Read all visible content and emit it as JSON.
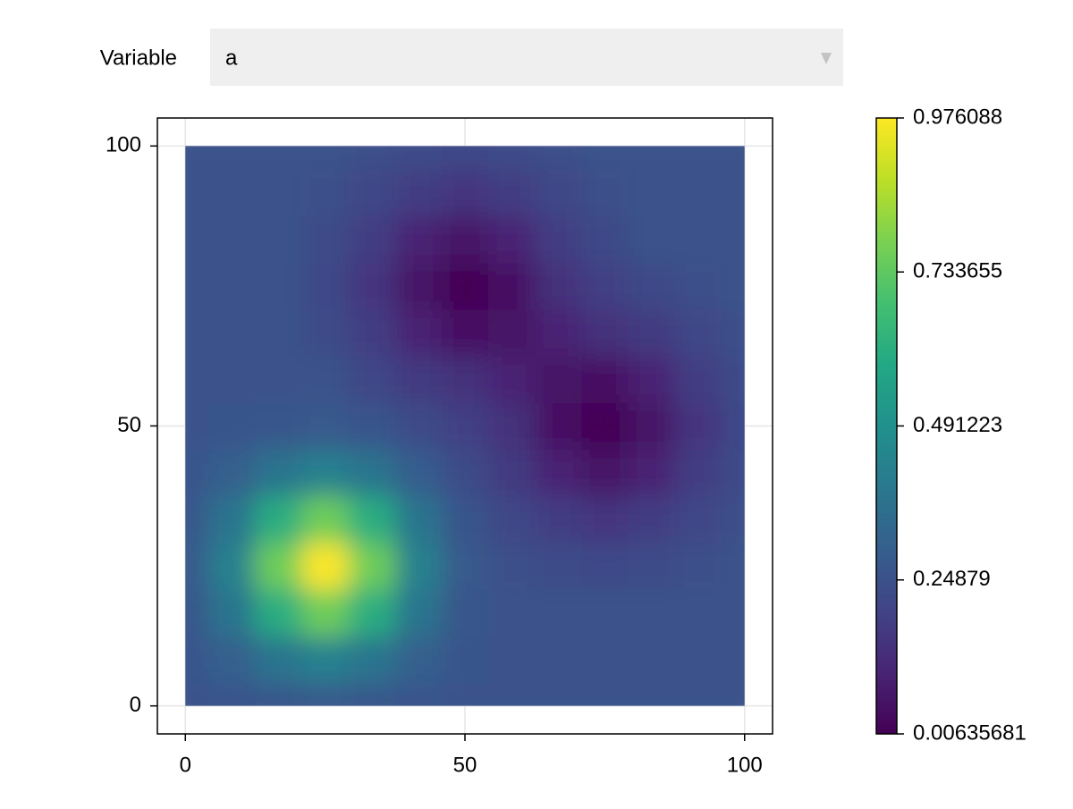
{
  "menu": {
    "label": "Variable",
    "selected": "a"
  },
  "chart_data": {
    "type": "heatmap",
    "colormap": "viridis",
    "grid": true,
    "x": [
      0,
      8.33,
      16.67,
      25,
      33.33,
      41.67,
      50,
      58.33,
      66.67,
      75,
      83.33,
      91.67,
      100
    ],
    "y": [
      0,
      8.33,
      16.67,
      25,
      33.33,
      41.67,
      50,
      58.33,
      66.67,
      75,
      83.33,
      91.67,
      100
    ],
    "z": [
      [
        0.25,
        0.26,
        0.27,
        0.28,
        0.27,
        0.26,
        0.25,
        0.25,
        0.25,
        0.25,
        0.25,
        0.25,
        0.25
      ],
      [
        0.26,
        0.3,
        0.38,
        0.43,
        0.38,
        0.3,
        0.26,
        0.25,
        0.25,
        0.25,
        0.25,
        0.25,
        0.25
      ],
      [
        0.27,
        0.38,
        0.61,
        0.76,
        0.61,
        0.38,
        0.27,
        0.25,
        0.25,
        0.25,
        0.25,
        0.25,
        0.25
      ],
      [
        0.28,
        0.43,
        0.76,
        0.976088,
        0.76,
        0.43,
        0.28,
        0.24,
        0.23,
        0.22,
        0.23,
        0.24,
        0.25
      ],
      [
        0.27,
        0.38,
        0.61,
        0.76,
        0.61,
        0.38,
        0.26,
        0.21,
        0.18,
        0.16,
        0.18,
        0.21,
        0.24
      ],
      [
        0.26,
        0.3,
        0.38,
        0.43,
        0.38,
        0.29,
        0.23,
        0.17,
        0.1,
        0.06,
        0.1,
        0.18,
        0.23
      ],
      [
        0.25,
        0.26,
        0.27,
        0.28,
        0.26,
        0.23,
        0.19,
        0.14,
        0.05,
        0.00635681,
        0.06,
        0.16,
        0.22
      ],
      [
        0.25,
        0.25,
        0.25,
        0.25,
        0.21,
        0.17,
        0.14,
        0.1,
        0.06,
        0.05,
        0.1,
        0.18,
        0.23
      ],
      [
        0.25,
        0.25,
        0.25,
        0.23,
        0.18,
        0.1,
        0.05,
        0.06,
        0.1,
        0.14,
        0.17,
        0.21,
        0.24
      ],
      [
        0.25,
        0.25,
        0.25,
        0.22,
        0.16,
        0.06,
        0.00635681,
        0.05,
        0.14,
        0.19,
        0.22,
        0.24,
        0.25
      ],
      [
        0.25,
        0.25,
        0.25,
        0.23,
        0.18,
        0.1,
        0.06,
        0.1,
        0.18,
        0.22,
        0.25,
        0.25,
        0.25
      ],
      [
        0.25,
        0.25,
        0.25,
        0.24,
        0.21,
        0.18,
        0.16,
        0.18,
        0.21,
        0.24,
        0.25,
        0.25,
        0.25
      ],
      [
        0.25,
        0.25,
        0.25,
        0.25,
        0.24,
        0.23,
        0.22,
        0.23,
        0.24,
        0.25,
        0.25,
        0.25,
        0.25
      ]
    ],
    "xlim": [
      -5,
      105
    ],
    "ylim": [
      -5,
      105
    ],
    "xticks": [
      0,
      50,
      100
    ],
    "yticks": [
      0,
      50,
      100
    ],
    "clim": [
      0.00635681,
      0.976088
    ],
    "cticks": [
      0.00635681,
      0.24879,
      0.491223,
      0.733655,
      0.976088
    ]
  }
}
